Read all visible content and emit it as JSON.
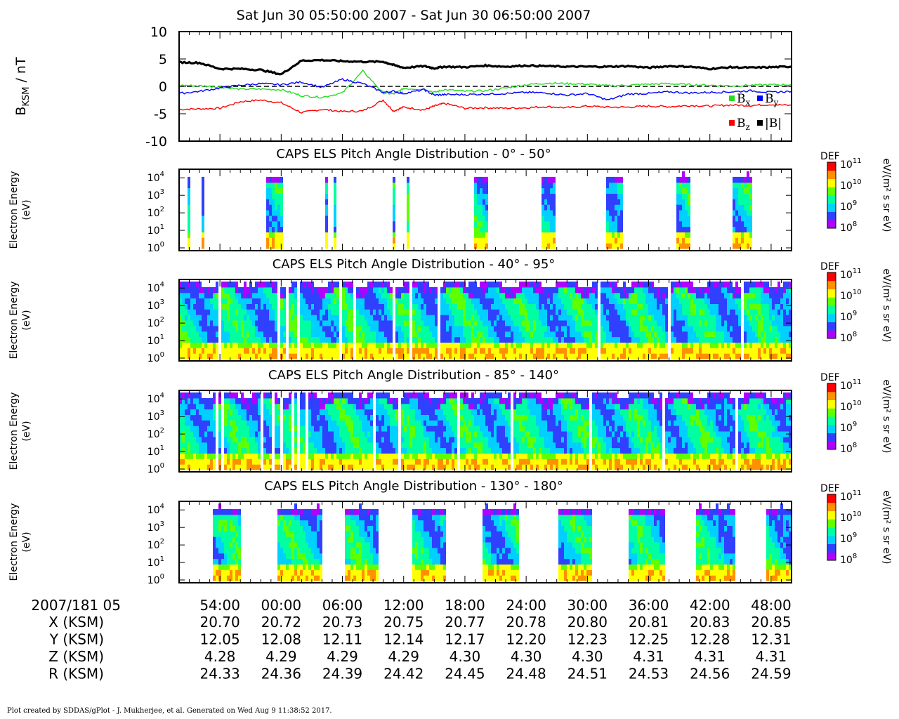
{
  "header": {
    "title": "Sat Jun 30 05:50:00 2007 - Sat Jun 30 06:50:00 2007"
  },
  "footer": {
    "credit": "Plot created by SDDAS/gPlot - J. Mukherjee, et al.  Generated on Wed Aug 9 11:38:52 2017."
  },
  "colors": {
    "bx": "#22dd22",
    "by": "#0000ff",
    "bz": "#ff0000",
    "bmag": "#000000",
    "colormap": [
      "#b000ff",
      "#3040ff",
      "#00d0ff",
      "#00ffa0",
      "#60ff00",
      "#ffff00",
      "#ff9000",
      "#ff0000"
    ]
  },
  "chart_data": [
    {
      "type": "line",
      "ylabel_main": "B",
      "ylabel_sub": "KSM",
      "ylabel_unit": " / nT",
      "ylim": [
        -10,
        10
      ],
      "yticks": [
        "10",
        "5",
        "0",
        "-5",
        "-10"
      ],
      "zero_line": "dashed",
      "legend_position": "right",
      "legend": [
        {
          "key": "bx",
          "main": "B",
          "sub": "x"
        },
        {
          "key": "by",
          "main": "B",
          "sub": "y"
        },
        {
          "key": "bz",
          "main": "B",
          "sub": "z"
        },
        {
          "key": "bmag",
          "main": "|B|",
          "sub": ""
        }
      ],
      "x_minutes": [
        0,
        2,
        4,
        6,
        8,
        10,
        12,
        14,
        16,
        18,
        20,
        21,
        22,
        24,
        25,
        26,
        28,
        30,
        32,
        34,
        36,
        38,
        40,
        42,
        44,
        46,
        48,
        50,
        52,
        54,
        56,
        58,
        60
      ],
      "series": [
        {
          "key": "bmag",
          "values": [
            4.4,
            4.3,
            3.2,
            3.2,
            3.0,
            2.2,
            4.7,
            4.8,
            4.6,
            4.5,
            4.5,
            3.9,
            3.4,
            3.7,
            3.3,
            3.6,
            3.5,
            3.8,
            3.6,
            3.8,
            3.7,
            3.6,
            3.6,
            3.6,
            3.7,
            3.4,
            3.7,
            3.6,
            3.2,
            3.5,
            3.4,
            3.5,
            3.6
          ]
        },
        {
          "key": "bx",
          "values": [
            0.2,
            0.1,
            -0.1,
            -0.5,
            -0.5,
            -0.6,
            -1.7,
            -2.0,
            -1.2,
            2.8,
            -1.2,
            -1.4,
            -0.4,
            -0.5,
            -1.1,
            -0.6,
            -0.9,
            -0.8,
            -0.3,
            0.3,
            0.6,
            0.5,
            0.4,
            0.1,
            0.2,
            0.4,
            0.5,
            0.3,
            0.2,
            0.1,
            0.2,
            0.3,
            0.3
          ]
        },
        {
          "key": "by",
          "values": [
            -1.3,
            -0.9,
            -0.3,
            0.2,
            0.5,
            0.3,
            0.8,
            -0.2,
            1.3,
            0.5,
            -1.1,
            -0.9,
            -1.3,
            -0.6,
            -1.6,
            -1.5,
            -1.5,
            -1.4,
            -1.3,
            -1.1,
            -1.2,
            -1.6,
            -1.3,
            -2.5,
            -1.4,
            -1.3,
            -1.0,
            -1.2,
            -1.1,
            -1.0,
            -0.8,
            -1.1,
            -0.9
          ]
        },
        {
          "key": "bz",
          "values": [
            -4.2,
            -4.1,
            -4.0,
            -2.8,
            -2.5,
            -3.0,
            -4.8,
            -4.2,
            -4.6,
            -4.5,
            -2.5,
            -4.5,
            -3.8,
            -4.3,
            -3.6,
            -3.1,
            -4.0,
            -3.9,
            -4.0,
            -3.9,
            -3.7,
            -3.9,
            -3.6,
            -3.8,
            -3.8,
            -3.6,
            -3.7,
            -3.5,
            -3.6,
            -3.4,
            -3.5,
            -3.3,
            -3.5
          ]
        }
      ]
    },
    {
      "type": "heatmap",
      "title": "CAPS ELS Pitch Angle Distribution - 0° - 50°",
      "ylabel": [
        "Electron Energy",
        "(eV)"
      ],
      "ymin_exp": 0,
      "ymax_exp": 4,
      "coverage": "bursts",
      "bursts_minutes": [
        [
          0.8,
          1.1
        ],
        [
          2.0,
          2.3
        ],
        [
          8.5,
          10.0
        ],
        [
          14.2,
          14.4
        ],
        [
          15.1,
          15.3
        ],
        [
          20.9,
          21.0
        ],
        [
          22.2,
          22.5
        ],
        [
          28.7,
          30.1
        ],
        [
          35.3,
          36.8
        ],
        [
          41.7,
          43.4
        ],
        [
          48.5,
          50.0
        ],
        [
          54.1,
          55.9
        ]
      ],
      "burst_top_exp": 3.4,
      "colorbar": {
        "label": "DEF",
        "unit": "eV/(m² s sr eV)",
        "ticks_exp": [
          11,
          10,
          9,
          8
        ]
      }
    },
    {
      "type": "heatmap",
      "title": "CAPS ELS Pitch Angle Distribution - 40° - 95°",
      "ylabel": [
        "Electron Energy",
        "(eV)"
      ],
      "ymin_exp": 0,
      "ymax_exp": 4,
      "coverage": "continuous",
      "gaps_minutes": [
        3.7,
        3.9,
        9.6,
        10.4,
        11.6,
        15.8,
        17.0,
        21.0,
        22.5,
        25.4,
        34.0,
        41.0,
        48.0,
        55.0
      ],
      "colorbar": {
        "label": "DEF",
        "unit": "eV/(m² s sr eV)",
        "ticks_exp": [
          11,
          10,
          9,
          8
        ]
      }
    },
    {
      "type": "heatmap",
      "title": "CAPS ELS Pitch Angle Distribution - 85° - 140°",
      "ylabel": [
        "Electron Energy",
        "(eV)"
      ],
      "ymin_exp": 0,
      "ymax_exp": 4,
      "coverage": "continuous",
      "gaps_minutes": [
        3.5,
        4.2,
        7.9,
        9.0,
        10.0,
        10.9,
        11.5,
        12.4,
        19.0,
        21.5,
        27.2,
        32.5,
        40.2,
        47.3,
        54.5
      ],
      "colorbar": {
        "label": "DEF",
        "unit": "eV/(m² s sr eV)",
        "ticks_exp": [
          11,
          10,
          9,
          8
        ]
      }
    },
    {
      "type": "heatmap",
      "title": "CAPS ELS Pitch Angle Distribution - 130° - 180°",
      "ylabel": [
        "Electron Energy",
        "(eV)"
      ],
      "ymin_exp": 0,
      "ymax_exp": 4,
      "coverage": "bursts",
      "bursts_minutes": [
        [
          3.1,
          6.0
        ],
        [
          9.4,
          13.8
        ],
        [
          16.0,
          19.5
        ],
        [
          22.8,
          26.0
        ],
        [
          29.5,
          33.2
        ],
        [
          36.9,
          40.4
        ],
        [
          43.8,
          47.4
        ],
        [
          50.6,
          54.3
        ],
        [
          57.3,
          60.0
        ]
      ],
      "burst_top_exp": 3.4,
      "colorbar": {
        "label": "DEF",
        "unit": "eV/(m² s sr eV)",
        "ticks_exp": [
          11,
          10,
          9,
          8
        ]
      }
    }
  ],
  "ephemeris": {
    "date_label": "2007/181 05",
    "times": [
      "54:00",
      "00:00",
      "06:00",
      "12:00",
      "18:00",
      "24:00",
      "30:00",
      "36:00",
      "42:00",
      "48:00"
    ],
    "tick_minutes": [
      4,
      10,
      16,
      22,
      28,
      34,
      40,
      46,
      52,
      58
    ],
    "rows": [
      {
        "label": "X (KSM)",
        "values": [
          "20.70",
          "20.72",
          "20.73",
          "20.75",
          "20.77",
          "20.78",
          "20.80",
          "20.81",
          "20.83",
          "20.85"
        ]
      },
      {
        "label": "Y (KSM)",
        "values": [
          "12.05",
          "12.08",
          "12.11",
          "12.14",
          "12.17",
          "12.20",
          "12.23",
          "12.25",
          "12.28",
          "12.31"
        ]
      },
      {
        "label": "Z (KSM)",
        "values": [
          "4.28",
          "4.29",
          "4.29",
          "4.29",
          "4.30",
          "4.30",
          "4.30",
          "4.31",
          "4.31",
          "4.31"
        ]
      },
      {
        "label": "R (KSM)",
        "values": [
          "24.33",
          "24.36",
          "24.39",
          "24.42",
          "24.45",
          "24.48",
          "24.51",
          "24.53",
          "24.56",
          "24.59"
        ]
      }
    ]
  }
}
